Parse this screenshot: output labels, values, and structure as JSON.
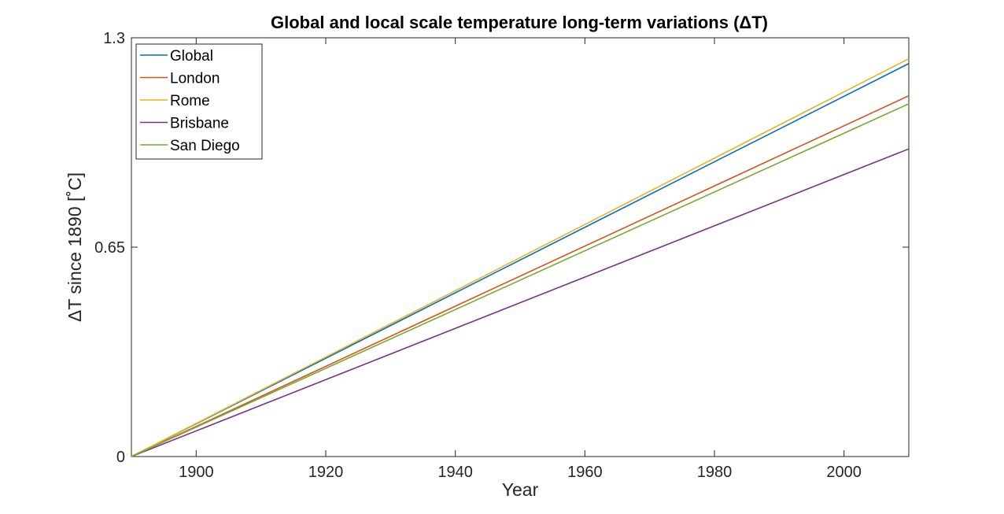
{
  "chart_data": {
    "type": "line",
    "title": "Global and local scale temperature long-term variations (ΔT)",
    "xlabel": "Year",
    "ylabel": "ΔT since 1890 [˚C]",
    "xlim": [
      1890,
      2010
    ],
    "ylim": [
      0,
      1.3
    ],
    "xticks": [
      1900,
      1920,
      1940,
      1960,
      1980,
      2000
    ],
    "xtick_labels": [
      "1900",
      "1920",
      "1940",
      "1960",
      "1980",
      "2000"
    ],
    "yticks": [
      0,
      0.65,
      1.3
    ],
    "ytick_labels": [
      "0",
      "0.65",
      "1.3"
    ],
    "grid": false,
    "legend_position": "top-left",
    "x": [
      1890,
      2010
    ],
    "series": [
      {
        "name": "Global",
        "color": "#0072BD",
        "values": [
          0,
          1.22
        ]
      },
      {
        "name": "London",
        "color": "#D95319",
        "values": [
          0,
          1.12
        ]
      },
      {
        "name": "Rome",
        "color": "#EDB120",
        "values": [
          0,
          1.235
        ]
      },
      {
        "name": "Brisbane",
        "color": "#7E2F8E",
        "values": [
          0,
          0.955
        ]
      },
      {
        "name": "San Diego",
        "color": "#77AC30",
        "values": [
          0,
          1.095
        ]
      }
    ]
  }
}
